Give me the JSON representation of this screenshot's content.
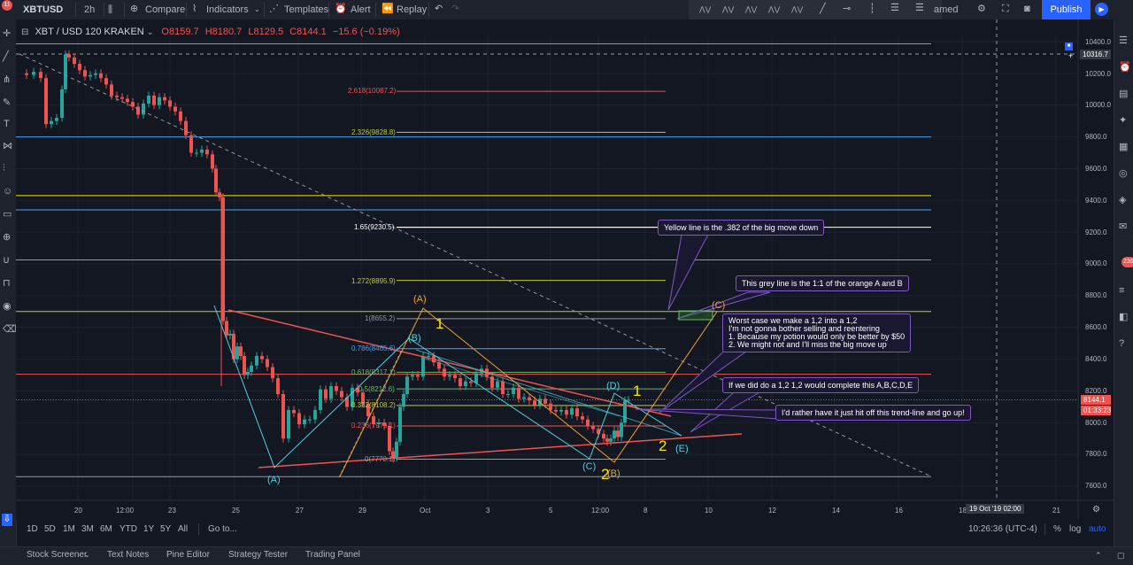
{
  "toolbar": {
    "symbol": "XBTUSD",
    "interval": "2h",
    "compare": "Compare",
    "indicators": "Indicators",
    "templates": "Templates",
    "alert": "Alert",
    "replay": "Replay",
    "publish": "Publish",
    "renamed": "amed",
    "notif_count": "11"
  },
  "legend": {
    "title": "XBT / USD  120  KRAKEN",
    "open": "O8159.7",
    "high": "H8180.7",
    "low": "L8129.5",
    "close": "C8144.1",
    "change": "−15.6 (−0.19%)"
  },
  "price_axis": {
    "labels": [
      "10400.0",
      "10200.0",
      "10000.0",
      "9800.0",
      "9600.0",
      "9400.0",
      "9200.0",
      "9000.0",
      "8800.0",
      "8600.0",
      "8400.0",
      "8200.0",
      "8000.0",
      "7800.0",
      "7600.0"
    ],
    "crosshair": "10316.7",
    "last_price": "8144.1",
    "countdown": "01:33:23",
    "badge": "236"
  },
  "time_axis": {
    "labels": [
      "20",
      "12:00",
      "23",
      "25",
      "27",
      "29",
      "Oct",
      "3",
      "5",
      "12:00",
      "8",
      "10",
      "12",
      "14",
      "16",
      "18",
      "21"
    ],
    "crosshair": "19 Oct '19   02:00"
  },
  "fibs": [
    {
      "label": "2.618(10087.2)",
      "color": "#ef5350"
    },
    {
      "label": "2.326(9828.8)",
      "color": "#c0ca33"
    },
    {
      "label": "1.65(9230.5)",
      "color": "#ffffff"
    },
    {
      "label": "1.272(8895.9)",
      "color": "#c0ca33"
    },
    {
      "label": "1(8655.2)",
      "color": "#9598a1"
    },
    {
      "label": "0.786(8465.6)",
      "color": "#42a5f5"
    },
    {
      "label": "0.618(8317.1)",
      "color": "#66bb6a"
    },
    {
      "label": "0.5(8212.6)",
      "color": "#66bb6a"
    },
    {
      "label": "0.382(8108.2)",
      "color": "#c0ca33"
    },
    {
      "label": "0.236(7979.1)",
      "color": "#ef5350"
    },
    {
      "label": "0(7770.1)",
      "color": "#9598a1"
    }
  ],
  "waves": {
    "A_orange": "(A)",
    "B_orange": "(B)",
    "C_orange": "(C)",
    "A_cyan": "(A)",
    "B_cyan": "(B)",
    "C_cyan": "(C)",
    "D_cyan": "(D)",
    "E_cyan": "(E)",
    "one_a": "1",
    "one_b": "1",
    "two_a": "2",
    "two_b": "2"
  },
  "annotations": [
    {
      "lines": [
        "Yellow line is the .382 of the big move down"
      ]
    },
    {
      "lines": [
        "This grey line is the 1:1 of the orange A and B"
      ]
    },
    {
      "lines": [
        "Worst case we make a 1,2 into a 1,2",
        "I'm not gonna bother selling and reentering",
        "1. Because my potion would only be better by $50",
        "2. We might not and I'll miss the big move up"
      ]
    },
    {
      "lines": [
        "If we did do a 1,2  1,2 would complete this A,B,C,D,E"
      ]
    },
    {
      "lines": [
        "I'd rather have it just hit off this trend-line and go up!"
      ]
    }
  ],
  "range_bar": {
    "ranges": [
      "1D",
      "5D",
      "1M",
      "3M",
      "6M",
      "YTD",
      "1Y",
      "5Y",
      "All"
    ],
    "goto": "Go to...",
    "clock": "10:26:36 (UTC-4)",
    "percent": "%",
    "log": "log",
    "auto": "auto"
  },
  "bottom_tabs": [
    "Stock Screener",
    "Text Notes",
    "Pine Editor",
    "Strategy Tester",
    "Trading Panel"
  ],
  "colors": {
    "bg": "#131722",
    "up": "#26a69a",
    "down": "#ef5350",
    "accent": "#2962ff",
    "annot": "#7e57c2",
    "wave_yellow": "#f9e400",
    "wave_orange": "#f0a030",
    "wave_cyan": "#4dd0e1"
  }
}
